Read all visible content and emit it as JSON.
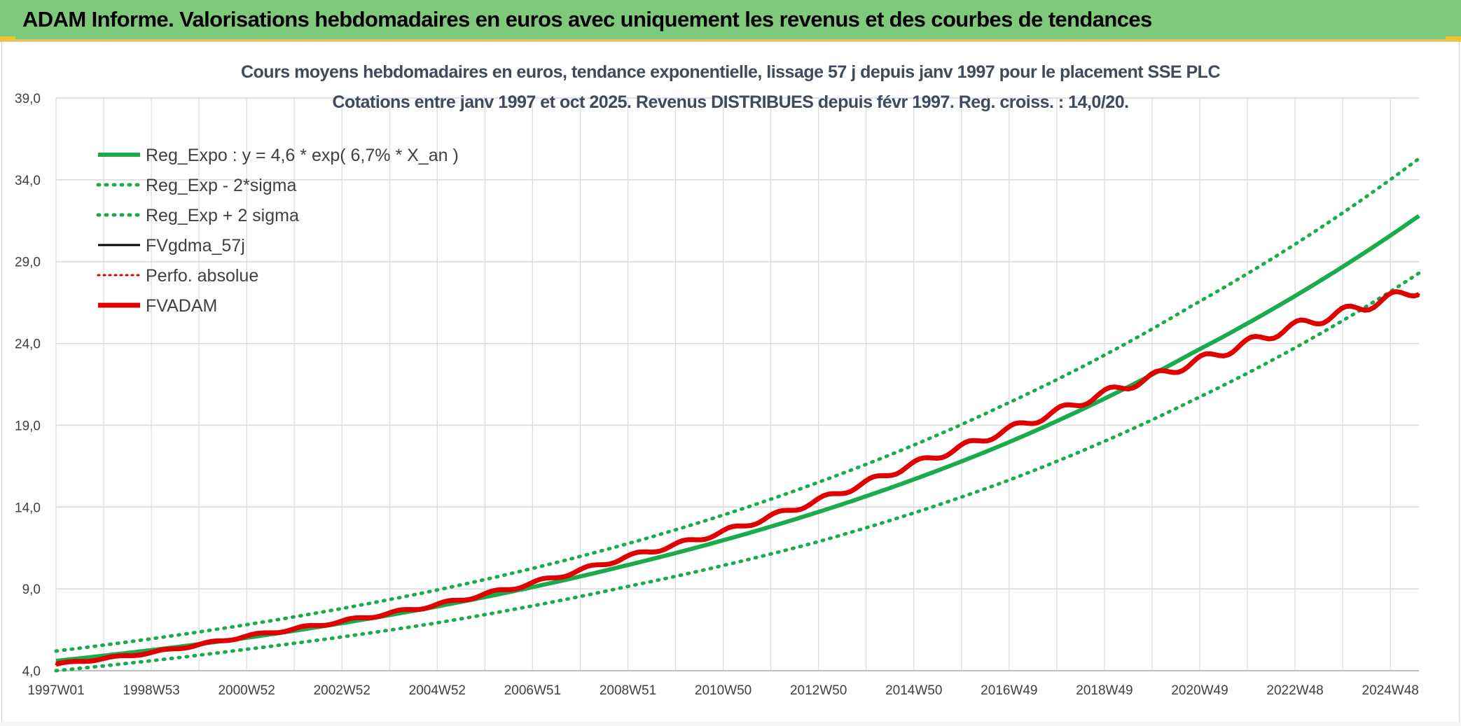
{
  "header": {
    "title": "ADAM Informe. Valorisations hebdomadaires en euros avec uniquement les revenus et des courbes de tendances"
  },
  "colors": {
    "banner": "#7ec97a",
    "trend": "#1aab4b",
    "black_series": "#000000",
    "red_series": "#e00000",
    "grid": "#dadada"
  },
  "chart_data": {
    "type": "line",
    "title": "Cours moyens hebdomadaires en euros, tendance exponentielle, lissage 57 j depuis janv 1997 pour le placement SSE PLC",
    "subtitle": "Cotations entre janv 1997 et oct 2025. Revenus DISTRIBUES depuis févr 1997. Reg. croiss. : 14,0/20.",
    "xlabel": "",
    "ylabel": "",
    "x_ticks": [
      "1997W01",
      "1998W53",
      "2000W52",
      "2002W52",
      "2004W52",
      "2006W51",
      "2008W51",
      "2010W50",
      "2012W50",
      "2014W50",
      "2016W49",
      "2018W49",
      "2020W49",
      "2022W48",
      "2024W48"
    ],
    "y_ticks": [
      "4,0",
      "9,0",
      "14,0",
      "19,0",
      "24,0",
      "29,0",
      "34,0",
      "39,0"
    ],
    "ylim": [
      4,
      39
    ],
    "xlim": [
      1997.0,
      2025.8
    ],
    "grid": true,
    "legend_position": "top-left",
    "series": [
      {
        "name": "Reg_Expo : y = 4,6 * exp( 6,7% *  X_an )",
        "style": "solid-green",
        "x": [
          1997.0,
          2001.0,
          2005.0,
          2009.0,
          2013.0,
          2017.0,
          2021.0,
          2025.8
        ],
        "values": [
          4.6,
          6.0,
          7.9,
          10.4,
          13.6,
          17.8,
          23.4,
          31.8
        ]
      },
      {
        "name": "Reg_Exp - 2*sigma",
        "style": "dotted-green",
        "x": [
          1997.0,
          2001.0,
          2005.0,
          2009.0,
          2013.0,
          2017.0,
          2021.0,
          2025.8
        ],
        "values": [
          4.0,
          5.3,
          6.9,
          9.1,
          11.8,
          15.5,
          20.5,
          28.3
        ]
      },
      {
        "name": "Reg_Exp + 2 sigma",
        "style": "dotted-green",
        "x": [
          1997.0,
          2001.0,
          2005.0,
          2009.0,
          2013.0,
          2017.0,
          2021.0,
          2025.8
        ],
        "values": [
          5.2,
          6.8,
          8.9,
          11.7,
          15.4,
          20.2,
          26.3,
          35.3
        ]
      },
      {
        "name": "FVgdma_57j",
        "style": "solid-black",
        "x": [
          1997.0,
          1999.0,
          2001.0,
          2003.0,
          2005.0,
          2007.0,
          2009.0,
          2011.0,
          2013.0,
          2015.0,
          2017.0,
          2019.0,
          2021.0,
          2023.0,
          2025.8
        ],
        "values": [
          4.4,
          5.1,
          6.1,
          7.0,
          8.0,
          9.3,
          10.9,
          12.4,
          14.3,
          16.5,
          18.6,
          20.8,
          22.8,
          24.9,
          27.3
        ]
      },
      {
        "name": "Perfo. absolue",
        "style": "dotted-red",
        "x": [
          1997.0,
          1999.0,
          2001.0,
          2003.0,
          2005.0,
          2007.0,
          2009.0,
          2011.0,
          2013.0,
          2015.0,
          2017.0,
          2019.0,
          2021.0,
          2023.0,
          2025.8
        ],
        "values": [
          4.4,
          5.1,
          6.1,
          7.0,
          8.0,
          9.3,
          10.9,
          12.4,
          14.3,
          16.5,
          18.6,
          20.8,
          22.8,
          24.9,
          27.3
        ]
      },
      {
        "name": "FVADAM",
        "style": "solid-red",
        "x": [
          1997.0,
          1999.0,
          2001.0,
          2003.0,
          2005.0,
          2007.0,
          2009.0,
          2011.0,
          2013.0,
          2015.0,
          2017.0,
          2019.0,
          2021.0,
          2023.0,
          2025.8
        ],
        "values": [
          4.4,
          5.1,
          6.1,
          7.0,
          8.0,
          9.3,
          10.9,
          12.4,
          14.3,
          16.5,
          18.6,
          20.8,
          22.8,
          24.9,
          27.3
        ]
      }
    ]
  }
}
